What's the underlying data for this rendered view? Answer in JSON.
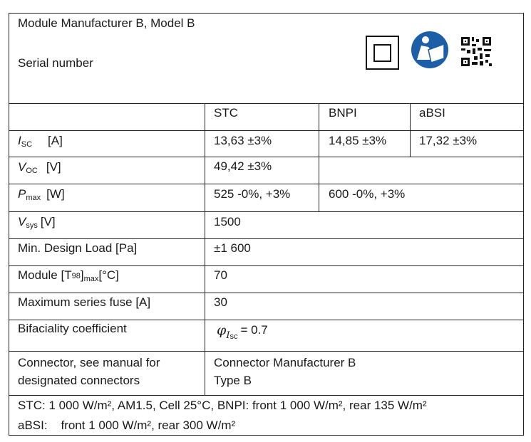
{
  "header": {
    "title": "Module Manufacturer B, Model B",
    "serial": "Serial number"
  },
  "table": {
    "columns": [
      "STC",
      "BNPI",
      "aBSI"
    ],
    "rows": [
      {
        "label": {
          "symbol": "I",
          "sub": "SC",
          "unit": "[A]"
        },
        "values": [
          "13,63 ±3%",
          "14,85 ±3%",
          "17,32 ±3%"
        ]
      },
      {
        "label": {
          "symbol": "V",
          "sub": "OC",
          "unit": "[V]"
        },
        "values": [
          "49,42 ±3%"
        ]
      },
      {
        "label": {
          "symbol": "P",
          "sub": "max",
          "unit": "[W]"
        },
        "values": [
          "525 -0%, +3%",
          "600 -0%, +3%"
        ]
      },
      {
        "label": {
          "symbol": "V",
          "sub": "sys",
          "unit": "[V]"
        },
        "values": [
          "1500"
        ]
      },
      {
        "label": "Min. Design Load [Pa]",
        "values": [
          "±1 600"
        ]
      },
      {
        "label": {
          "pre": "Module [T",
          "sub": "98",
          "mid": "]",
          "sub2": "max",
          "unit": "[°C]"
        },
        "values": [
          "70"
        ]
      },
      {
        "label": "Maximum series fuse [A]",
        "values": [
          "30"
        ]
      },
      {
        "label": "Bifaciality coefficient",
        "value": {
          "symbol": "φ",
          "sub_symbol": "I",
          "sub": "sc",
          "text": "= 0.7"
        }
      },
      {
        "label": [
          "Connector, see manual for",
          "designated connectors"
        ],
        "values": [
          "Connector Manufacturer B",
          "Type B"
        ]
      }
    ]
  },
  "footer": [
    "STC: 1 000 W/m², AM1.5, Cell 25°C, BNPI: front 1 000 W/m², rear 135 W/m²",
    "aBSI:    front 1 000 W/m², rear 300 W/m²"
  ]
}
